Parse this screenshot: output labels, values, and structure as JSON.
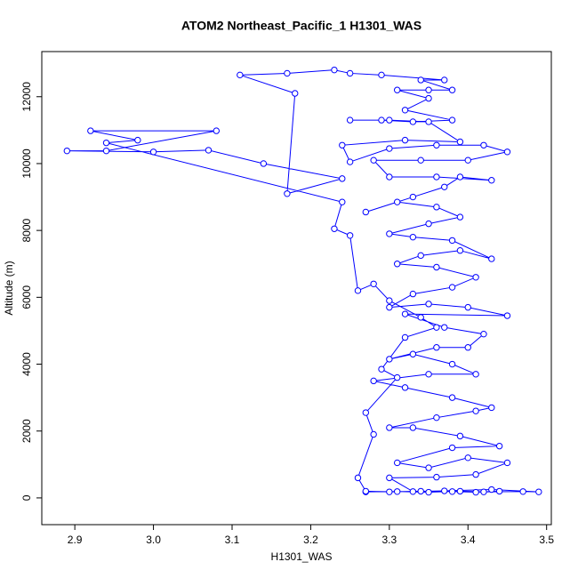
{
  "chart_data": {
    "type": "line",
    "title": "ATOM2 Northeast_Pacific_1 H1301_WAS",
    "xlabel": "H1301_WAS",
    "ylabel": "Altitude (m)",
    "color": "#0000ff",
    "marker": "circle",
    "xlim": [
      2.858,
      3.506
    ],
    "ylim": [
      -800,
      13350
    ],
    "xticks": [
      2.9,
      {
        "value": 3,
        "label": "3.0"
      },
      3.1,
      3.2,
      3.3,
      3.4,
      3.5
    ],
    "yticks": [
      0,
      2000,
      4000,
      6000,
      8000,
      10000,
      12000
    ],
    "x": [
      3.27,
      3.31,
      3.35,
      3.39,
      3.42,
      3.47,
      3.49,
      3.43,
      3.37,
      3.33,
      3.3,
      3.36,
      3.41,
      3.45,
      3.4,
      3.35,
      3.31,
      3.38,
      3.44,
      3.39,
      3.33,
      3.3,
      3.36,
      3.41,
      3.43,
      3.38,
      3.32,
      3.28,
      3.35,
      3.41,
      3.38,
      3.33,
      3.3,
      3.36,
      3.4,
      3.42,
      3.37,
      3.32,
      3.45,
      3.4,
      3.35,
      3.3,
      3.33,
      3.38,
      3.41,
      3.36,
      3.31,
      3.34,
      3.39,
      3.43,
      3.38,
      3.33,
      3.3,
      3.35,
      3.39,
      3.36,
      3.31,
      3.27,
      3.33,
      3.37,
      3.39,
      3.43,
      3.36,
      3.3,
      3.28,
      3.34,
      3.4,
      3.45,
      3.42,
      3.36,
      3.3,
      3.25,
      3.24,
      3.32,
      3.39,
      3.35,
      3.3,
      3.25,
      3.29,
      3.33,
      3.38,
      3.32,
      3.35,
      3.31,
      3.35,
      3.38,
      3.34,
      3.37,
      3.29,
      3.25,
      3.23,
      3.17,
      3.11,
      3.18,
      3.17,
      3.24,
      3.14,
      3.07,
      3.0,
      2.89,
      2.94,
      3.08,
      2.92,
      2.98,
      2.94,
      3.24,
      3.23,
      3.25,
      3.26,
      3.28,
      3.3,
      3.34,
      3.36,
      3.32,
      3.29,
      3.31,
      3.27,
      3.28,
      3.26,
      3.27,
      3.3,
      3.34,
      3.38,
      3.41,
      3.44
    ],
    "values": [
      180,
      190,
      170,
      200,
      180,
      190,
      180,
      250,
      210,
      190,
      600,
      620,
      700,
      1050,
      1200,
      900,
      1050,
      1500,
      1550,
      1850,
      2100,
      2100,
      2400,
      2600,
      2700,
      3000,
      3300,
      3500,
      3700,
      3700,
      4000,
      4300,
      4150,
      4500,
      4500,
      4900,
      5100,
      5500,
      5450,
      5700,
      5800,
      5700,
      6100,
      6300,
      6600,
      6900,
      7000,
      7250,
      7400,
      7150,
      7700,
      7800,
      7900,
      8200,
      8400,
      8700,
      8850,
      8550,
      9000,
      9300,
      9600,
      9500,
      9600,
      9600,
      10100,
      10100,
      10100,
      10350,
      10550,
      10550,
      10450,
      10050,
      10550,
      10700,
      10650,
      11250,
      11300,
      11300,
      11300,
      11250,
      11300,
      11600,
      11950,
      12200,
      12200,
      12200,
      12500,
      12500,
      12650,
      12700,
      12800,
      12700,
      12650,
      12100,
      9100,
      9550,
      10000,
      10400,
      10350,
      10380,
      10380,
      10980,
      10980,
      10700,
      10620,
      8850,
      8050,
      7850,
      6200,
      6400,
      5900,
      5400,
      5100,
      4800,
      3850,
      3600,
      2550,
      1900,
      600,
      200,
      180,
      200,
      190,
      170,
      200
    ]
  }
}
